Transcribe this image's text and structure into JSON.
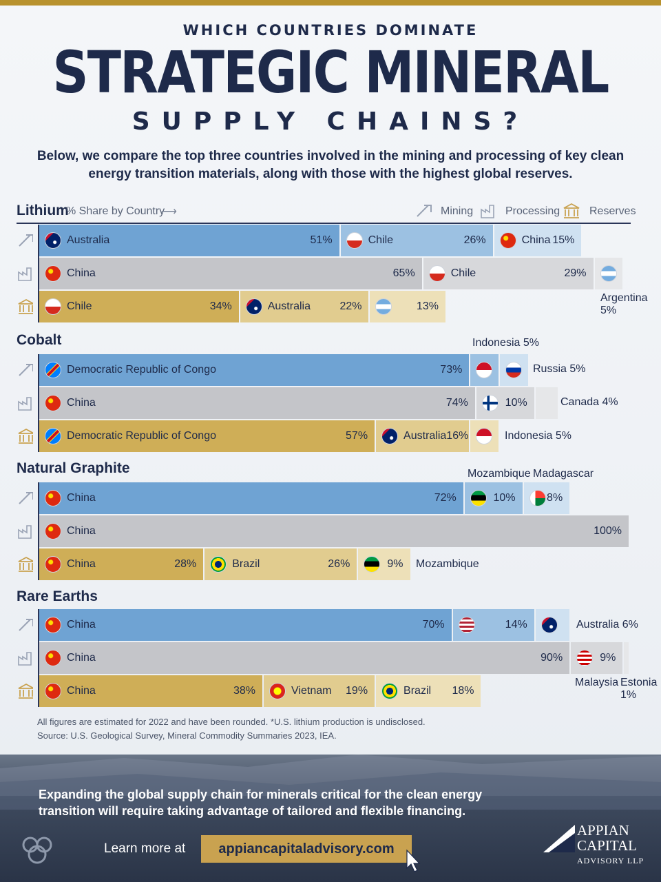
{
  "header": {
    "kicker": "WHICH COUNTRIES DOMINATE",
    "title": "STRATEGIC MINERAL",
    "subtitle": "SUPPLY CHAINS?",
    "intro": "Below, we compare the top three countries involved in the mining and processing of key clean energy transition materials, along with those with the highest global reserves."
  },
  "legend": {
    "first_section": "Lithium",
    "sub": "% Share by Country",
    "arrow": "⟶",
    "mining": "Mining",
    "processing": "Processing",
    "reserves": "Reserves"
  },
  "colors": {
    "mining": [
      "#6fa3d3",
      "#9cc1e2",
      "#cfe1f1"
    ],
    "processing": [
      "#c4c5c9",
      "#d7d8db",
      "#e6e7e9"
    ],
    "reserves": [
      "#cfae57",
      "#e1cc8f",
      "#ede0b8"
    ],
    "navy": "#1e2a4a",
    "gold": "#b8922e"
  },
  "icons": {
    "mining": "pickaxe-icon",
    "processing": "factory-icon",
    "reserves": "bank-icon"
  },
  "chart_data": {
    "type": "bar",
    "orientation": "horizontal-stacked",
    "unit": "%",
    "minerals": [
      {
        "name": "Lithium",
        "rows": [
          {
            "stage": "Mining",
            "entries": [
              {
                "country": "Australia",
                "value": 51,
                "label": "51%"
              },
              {
                "country": "Chile",
                "value": 26,
                "label": "26%"
              },
              {
                "country": "China",
                "value": 15,
                "label": "15%"
              }
            ]
          },
          {
            "stage": "Processing",
            "entries": [
              {
                "country": "China",
                "value": 65,
                "label": "65%"
              },
              {
                "country": "Chile",
                "value": 29,
                "label": "29%"
              },
              {
                "country": "Argentina",
                "value": 5,
                "label": "5%"
              }
            ]
          },
          {
            "stage": "Reserves",
            "entries": [
              {
                "country": "Chile",
                "value": 34,
                "label": "34%"
              },
              {
                "country": "Australia",
                "value": 22,
                "label": "22%"
              },
              {
                "country": "Argentina",
                "value": 13,
                "label": "13%"
              }
            ]
          }
        ]
      },
      {
        "name": "Cobalt",
        "rows": [
          {
            "stage": "Mining",
            "entries": [
              {
                "country": "Democratic Republic of Congo",
                "value": 73,
                "label": "73%"
              },
              {
                "country": "Indonesia",
                "value": 5,
                "label": "5%"
              },
              {
                "country": "Russia",
                "value": 5,
                "label": "5%"
              }
            ]
          },
          {
            "stage": "Processing",
            "entries": [
              {
                "country": "China",
                "value": 74,
                "label": "74%"
              },
              {
                "country": "Finland",
                "value": 10,
                "label": "10%"
              },
              {
                "country": "Canada",
                "value": 4,
                "label": "4%"
              }
            ]
          },
          {
            "stage": "Reserves",
            "entries": [
              {
                "country": "Democratic Republic of Congo",
                "value": 57,
                "label": "57%"
              },
              {
                "country": "Australia",
                "value": 16,
                "label": "16%"
              },
              {
                "country": "Indonesia",
                "value": 5,
                "label": "5%"
              }
            ]
          }
        ]
      },
      {
        "name": "Natural Graphite",
        "rows": [
          {
            "stage": "Mining",
            "entries": [
              {
                "country": "China",
                "value": 72,
                "label": "72%"
              },
              {
                "country": "Mozambique",
                "value": 10,
                "label": "10%"
              },
              {
                "country": "Madagascar",
                "value": 8,
                "label": "8%"
              }
            ]
          },
          {
            "stage": "Processing",
            "entries": [
              {
                "country": "China",
                "value": 100,
                "label": "100%"
              }
            ]
          },
          {
            "stage": "Reserves",
            "entries": [
              {
                "country": "China",
                "value": 28,
                "label": "28%"
              },
              {
                "country": "Brazil",
                "value": 26,
                "label": "26%"
              },
              {
                "country": "Mozambique",
                "value": 9,
                "label": "9%"
              }
            ]
          }
        ]
      },
      {
        "name": "Rare Earths",
        "rows": [
          {
            "stage": "Mining",
            "entries": [
              {
                "country": "China",
                "value": 70,
                "label": "70%"
              },
              {
                "country": "U.S.",
                "value": 14,
                "label": "14%"
              },
              {
                "country": "Australia",
                "value": 6,
                "label": "6%"
              }
            ]
          },
          {
            "stage": "Processing",
            "entries": [
              {
                "country": "China",
                "value": 90,
                "label": "90%"
              },
              {
                "country": "Malaysia",
                "value": 9,
                "label": "9%"
              },
              {
                "country": "Estonia",
                "value": 1,
                "label": "1%"
              }
            ]
          },
          {
            "stage": "Reserves",
            "entries": [
              {
                "country": "China",
                "value": 38,
                "label": "38%"
              },
              {
                "country": "Vietnam",
                "value": 19,
                "label": "19%"
              },
              {
                "country": "Brazil",
                "value": 18,
                "label": "18%"
              }
            ]
          }
        ]
      }
    ]
  },
  "footnotes": {
    "line1": "All figures are estimated for 2022 and have been rounded. *U.S. lithium production is undisclosed.",
    "line2": "Source: U.S. Geological Survey, Mineral Commodity Summaries 2023, IEA."
  },
  "cta": {
    "text": "Expanding the global supply chain for minerals critical for the clean energy transition will require taking advantage of tailored and flexible financing.",
    "learn": "Learn more at",
    "url": "appiancapitaladvisory.com"
  },
  "logo": {
    "line1": "APPIAN",
    "line2": "CAPITAL",
    "line3": "ADVISORY LLP"
  }
}
